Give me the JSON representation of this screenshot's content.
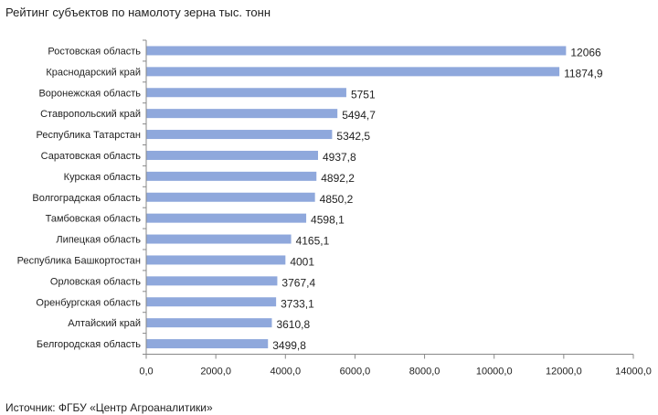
{
  "source_note": "Источник: ФГБУ «Центр Агроаналитики»",
  "chart_data": {
    "type": "bar",
    "orientation": "horizontal",
    "title": "Рейтинг субъектов по намолоту зерна тыс. тонн",
    "categories": [
      "Ростовская область",
      "Краснодарский край",
      "Воронежская область",
      "Ставропольский край",
      "Республика Татарстан",
      "Саратовская область",
      "Курская область",
      "Волгоградская область",
      "Тамбовская область",
      "Липецкая область",
      "Республика Башкортостан",
      "Орловская область",
      "Оренбургская область",
      "Алтайский край",
      "Белгородская область"
    ],
    "values": [
      12066,
      11874.9,
      5751,
      5494.7,
      5342.5,
      4937.8,
      4892.2,
      4850.2,
      4598.1,
      4165.1,
      4001,
      3767.4,
      3733.1,
      3610.8,
      3499.8
    ],
    "value_labels": [
      "12066",
      "11874,9",
      "5751",
      "5494,7",
      "5342,5",
      "4937,8",
      "4892,2",
      "4850,2",
      "4598,1",
      "4165,1",
      "4001",
      "3767,4",
      "3733,1",
      "3610,8",
      "3499,8"
    ],
    "xlim": [
      0,
      14000
    ],
    "x_ticks": [
      0,
      2000,
      4000,
      6000,
      8000,
      10000,
      12000,
      14000
    ],
    "x_tick_labels": [
      "0,0",
      "2000,0",
      "4000,0",
      "6000,0",
      "8000,0",
      "10000,0",
      "12000,0",
      "14000,0"
    ],
    "xlabel": "",
    "ylabel": "",
    "grid": false,
    "legend": "none",
    "bar_color": "#8fa8dc"
  }
}
